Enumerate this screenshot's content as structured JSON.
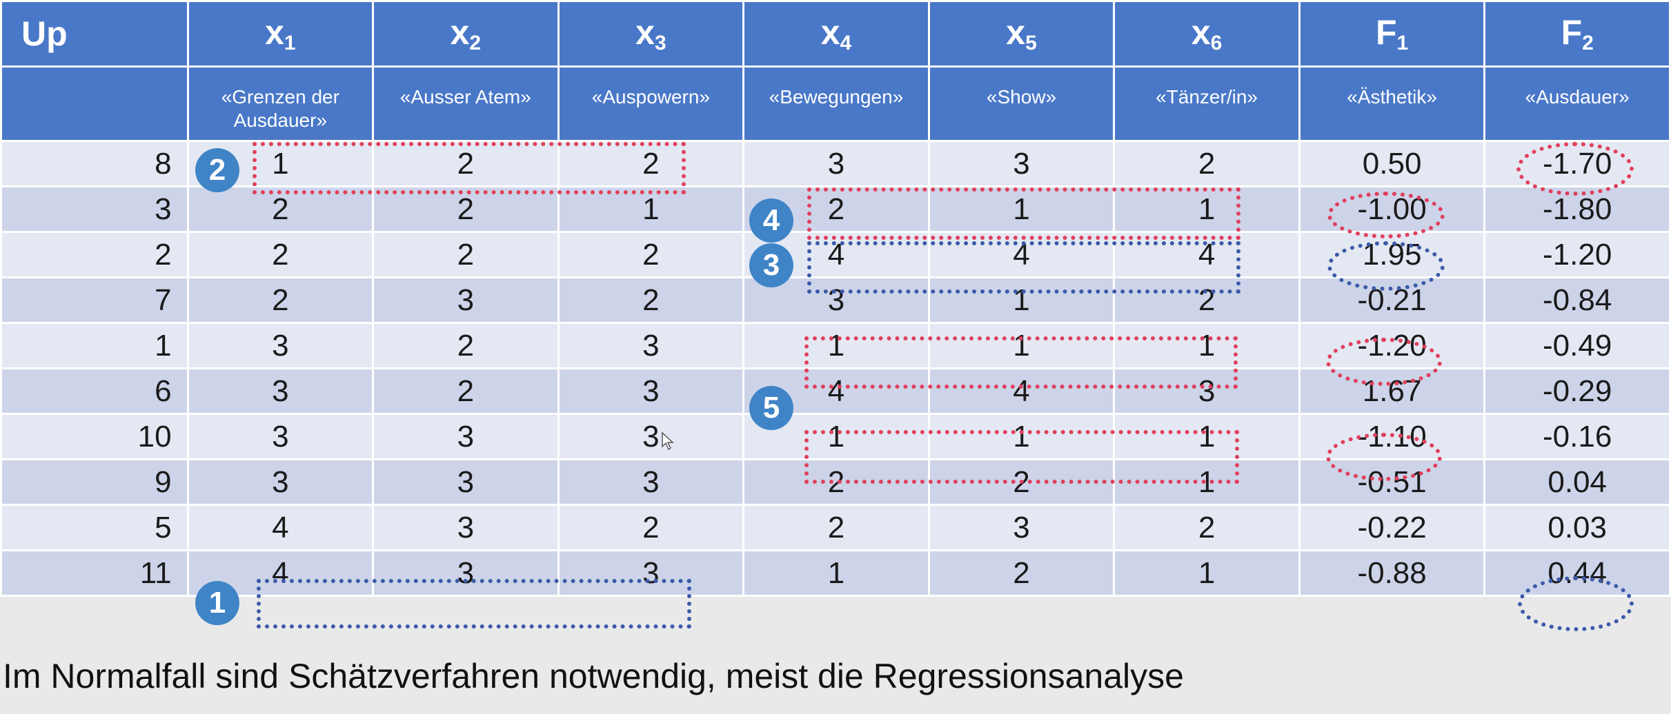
{
  "table": {
    "symbols": [
      {
        "base": "Up",
        "sub": ""
      },
      {
        "base": "x",
        "sub": "1"
      },
      {
        "base": "x",
        "sub": "2"
      },
      {
        "base": "x",
        "sub": "3"
      },
      {
        "base": "x",
        "sub": "4"
      },
      {
        "base": "x",
        "sub": "5"
      },
      {
        "base": "x",
        "sub": "6"
      },
      {
        "base": "F",
        "sub": "1"
      },
      {
        "base": "F",
        "sub": "2"
      }
    ],
    "labels": [
      "",
      "«Grenzen der Ausdauer»",
      "«Ausser Atem»",
      "«Auspowern»",
      "«Bewegungen»",
      "«Show»",
      "«Tänzer/in»",
      "«Ästhetik»",
      "«Ausdauer»"
    ],
    "rows": [
      [
        "8",
        "1",
        "2",
        "2",
        "3",
        "3",
        "2",
        "0.50",
        "-1.70"
      ],
      [
        "3",
        "2",
        "2",
        "1",
        "2",
        "1",
        "1",
        "-1.00",
        "-1.80"
      ],
      [
        "2",
        "2",
        "2",
        "2",
        "4",
        "4",
        "4",
        "1.95",
        "-1.20"
      ],
      [
        "7",
        "2",
        "3",
        "2",
        "3",
        "1",
        "2",
        "-0.21",
        "-0.84"
      ],
      [
        "1",
        "3",
        "2",
        "3",
        "1",
        "1",
        "1",
        "-1.20",
        "-0.49"
      ],
      [
        "6",
        "3",
        "2",
        "3",
        "4",
        "4",
        "3",
        "1.67",
        "-0.29"
      ],
      [
        "10",
        "3",
        "3",
        "3",
        "1",
        "1",
        "1",
        "-1.10",
        "-0.16"
      ],
      [
        "9",
        "3",
        "3",
        "3",
        "2",
        "2",
        "1",
        "-0.51",
        "0.04"
      ],
      [
        "5",
        "4",
        "3",
        "2",
        "2",
        "3",
        "2",
        "-0.22",
        "0.03"
      ],
      [
        "11",
        "4",
        "3",
        "3",
        "1",
        "2",
        "1",
        "-0.88",
        "0.44"
      ]
    ]
  },
  "badges": {
    "b1": "1",
    "b2": "2",
    "b3": "3",
    "b4": "4",
    "b5": "5"
  },
  "caption": "Im Normalfall sind Schätzverfahren notwendig, meist die Regressionsanalyse",
  "colors": {
    "header": "#4a78c8",
    "row_light": "#e4e8f3",
    "row_dark": "#cdd4e9",
    "mark_red": "#e0405c",
    "mark_blue": "#3c5aa8",
    "badge": "#3f84c6"
  }
}
